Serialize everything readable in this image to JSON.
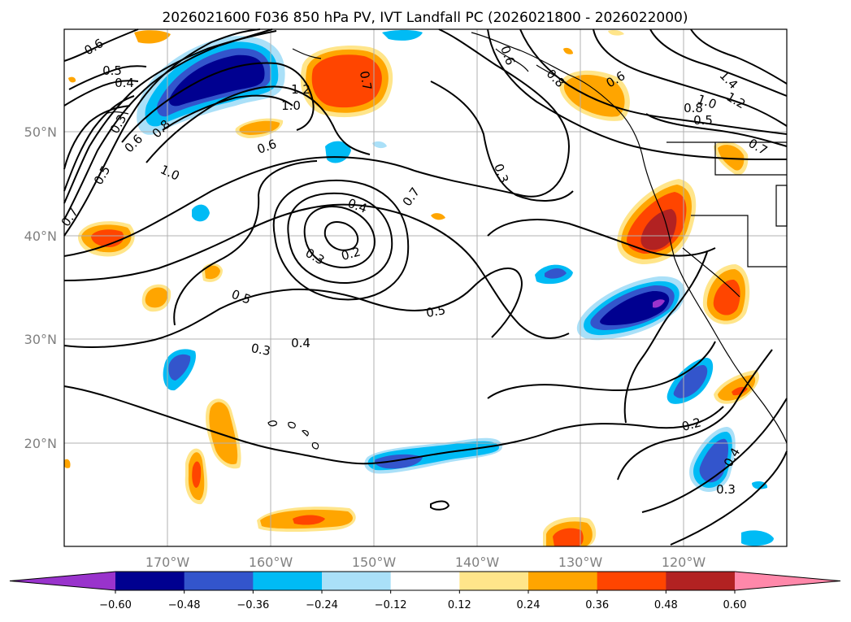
{
  "title": "2026021600 F036 850 hPa PV, IVT Landfall PC (2026021800 - 2026022000)",
  "lon_ticks": [
    "170°W",
    "160°W",
    "150°W",
    "140°W",
    "130°W",
    "120°W"
  ],
  "lat_ticks": [
    "50°N",
    "40°N",
    "30°N",
    "20°N"
  ],
  "colorbar": {
    "tick_labels": [
      "−0.60",
      "−0.48",
      "−0.36",
      "−0.24",
      "−0.12",
      "0.12",
      "0.24",
      "0.36",
      "0.48",
      "0.60"
    ],
    "colors": [
      "#9933cc",
      "#000090",
      "#3355cc",
      "#00bbf5",
      "#aae0f8",
      "#ffffff",
      "#ffe58a",
      "#ffa500",
      "#ff4500",
      "#b22222",
      "#ff88aa"
    ]
  },
  "contour_labels": {
    "c1": "0.6",
    "c2": "0.5",
    "c3": "0.4",
    "c4": "1.2",
    "c5": "1.0",
    "c6": "0.7",
    "c7": "0.3",
    "c8": "0.6",
    "c9": "0.8",
    "c10": "1.0",
    "c11": "0.5",
    "c12": "0.6",
    "c13": "0.7",
    "c14": "0.4",
    "c15": "0.2",
    "c16": "0.3",
    "c17": "0.7",
    "c18": "0.3",
    "c19": "0.5",
    "c20": "0.5",
    "c21": "0.4",
    "c22": "0.3",
    "c23": "0.6",
    "c24": "0.8",
    "c25": "0.6",
    "c26": "1.4",
    "c27": "1.2",
    "c28": "1.0",
    "c29": "0.8",
    "c30": "0.5",
    "c31": "0.7",
    "c32": "0.2",
    "c33": "0.4",
    "c34": "0.3"
  }
}
